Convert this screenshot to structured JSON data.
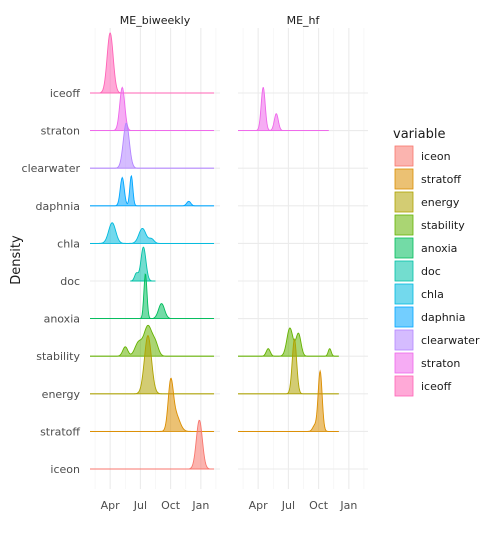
{
  "chart_data": {
    "type": "area",
    "subtype": "ridgeline-density",
    "ylabel": "Density",
    "xlabel": "",
    "panels": [
      "ME_biweekly",
      "ME_hf"
    ],
    "x_ticks": [
      {
        "label": "Apr",
        "month": 4
      },
      {
        "label": "Jul",
        "month": 7
      },
      {
        "label": "Oct",
        "month": 10
      },
      {
        "label": "Jan",
        "month": 13
      }
    ],
    "xlim_month": [
      2.0,
      14.9
    ],
    "rows_bottom_to_top": [
      "iceon",
      "stratoff",
      "energy",
      "stability",
      "anoxia",
      "doc",
      "chla",
      "daphnia",
      "clearwater",
      "straton",
      "iceoff"
    ],
    "legend": {
      "title": "variable",
      "position": "right",
      "items": [
        "iceon",
        "stratoff",
        "energy",
        "stability",
        "anoxia",
        "doc",
        "chla",
        "daphnia",
        "clearwater",
        "straton",
        "iceoff"
      ]
    },
    "colors": {
      "iceon": "#F8766D",
      "stratoff": "#DB8E00",
      "energy": "#AEA200",
      "stability": "#64B200",
      "anoxia": "#00BD5C",
      "doc": "#00C1A7",
      "chla": "#00BADE",
      "daphnia": "#00A6FF",
      "clearwater": "#B385FF",
      "straton": "#EF67EB",
      "iceoff": "#FF63B6"
    },
    "series": [
      {
        "panel": "ME_biweekly",
        "variable": "iceon",
        "xrange": [
          2.0,
          14.3
        ],
        "peaks": [
          {
            "month": 12.85,
            "sd": 0.3,
            "height": 1.3
          }
        ]
      },
      {
        "panel": "ME_biweekly",
        "variable": "stratoff",
        "xrange": [
          2.0,
          14.3
        ],
        "peaks": [
          {
            "month": 10.0,
            "sd": 0.25,
            "height": 1.2
          },
          {
            "month": 10.5,
            "sd": 0.4,
            "height": 0.45
          }
        ]
      },
      {
        "panel": "ME_biweekly",
        "variable": "energy",
        "xrange": [
          2.0,
          14.3
        ],
        "peaks": [
          {
            "month": 7.75,
            "sd": 0.35,
            "height": 1.55
          }
        ]
      },
      {
        "panel": "ME_biweekly",
        "variable": "stability",
        "xrange": [
          2.0,
          14.3
        ],
        "peaks": [
          {
            "month": 5.5,
            "sd": 0.25,
            "height": 0.25
          },
          {
            "month": 6.8,
            "sd": 0.35,
            "height": 0.35
          },
          {
            "month": 7.75,
            "sd": 0.4,
            "height": 0.8
          },
          {
            "month": 8.5,
            "sd": 0.3,
            "height": 0.3
          }
        ]
      },
      {
        "panel": "ME_biweekly",
        "variable": "anoxia",
        "xrange": [
          2.0,
          14.3
        ],
        "peaks": [
          {
            "month": 7.5,
            "sd": 0.15,
            "height": 1.2
          },
          {
            "month": 9.1,
            "sd": 0.3,
            "height": 0.4
          }
        ]
      },
      {
        "panel": "ME_biweekly",
        "variable": "doc",
        "xrange": [
          6.0,
          8.5
        ],
        "peaks": [
          {
            "month": 7.3,
            "sd": 0.25,
            "height": 0.9
          },
          {
            "month": 6.6,
            "sd": 0.18,
            "height": 0.2
          }
        ]
      },
      {
        "panel": "ME_biweekly",
        "variable": "chla",
        "xrange": [
          2.0,
          14.3
        ],
        "peaks": [
          {
            "month": 4.2,
            "sd": 0.35,
            "height": 0.55
          },
          {
            "month": 7.2,
            "sd": 0.35,
            "height": 0.4
          },
          {
            "month": 8.1,
            "sd": 0.25,
            "height": 0.12
          }
        ]
      },
      {
        "panel": "ME_biweekly",
        "variable": "daphnia",
        "xrange": [
          2.0,
          14.3
        ],
        "peaks": [
          {
            "month": 5.2,
            "sd": 0.2,
            "height": 0.75
          },
          {
            "month": 6.1,
            "sd": 0.15,
            "height": 0.8
          },
          {
            "month": 11.8,
            "sd": 0.2,
            "height": 0.12
          }
        ]
      },
      {
        "panel": "ME_biweekly",
        "variable": "clearwater",
        "xrange": [
          2.0,
          14.3
        ],
        "peaks": [
          {
            "month": 5.6,
            "sd": 0.3,
            "height": 1.2
          }
        ]
      },
      {
        "panel": "ME_biweekly",
        "variable": "straton",
        "xrange": [
          2.0,
          14.3
        ],
        "peaks": [
          {
            "month": 5.2,
            "sd": 0.25,
            "height": 1.15
          }
        ]
      },
      {
        "panel": "ME_biweekly",
        "variable": "iceoff",
        "xrange": [
          2.0,
          14.3
        ],
        "peaks": [
          {
            "month": 4.0,
            "sd": 0.3,
            "height": 1.6
          }
        ]
      },
      {
        "panel": "ME_hf",
        "variable": "straton",
        "xrange": [
          2.0,
          11.0
        ],
        "peaks": [
          {
            "month": 4.5,
            "sd": 0.2,
            "height": 1.15
          },
          {
            "month": 5.8,
            "sd": 0.2,
            "height": 0.45
          }
        ]
      },
      {
        "panel": "ME_hf",
        "variable": "stability",
        "xrange": [
          2.0,
          12.0
        ],
        "peaks": [
          {
            "month": 5.0,
            "sd": 0.2,
            "height": 0.2
          },
          {
            "month": 7.15,
            "sd": 0.3,
            "height": 0.75
          },
          {
            "month": 8.0,
            "sd": 0.25,
            "height": 0.6
          },
          {
            "month": 11.1,
            "sd": 0.15,
            "height": 0.2
          }
        ]
      },
      {
        "panel": "ME_hf",
        "variable": "energy",
        "xrange": [
          2.0,
          12.0
        ],
        "peaks": [
          {
            "month": 7.6,
            "sd": 0.22,
            "height": 1.45
          }
        ]
      },
      {
        "panel": "ME_hf",
        "variable": "stratoff",
        "xrange": [
          2.0,
          12.0
        ],
        "peaks": [
          {
            "month": 10.15,
            "sd": 0.2,
            "height": 1.6
          },
          {
            "month": 9.6,
            "sd": 0.2,
            "height": 0.15
          }
        ]
      }
    ]
  }
}
